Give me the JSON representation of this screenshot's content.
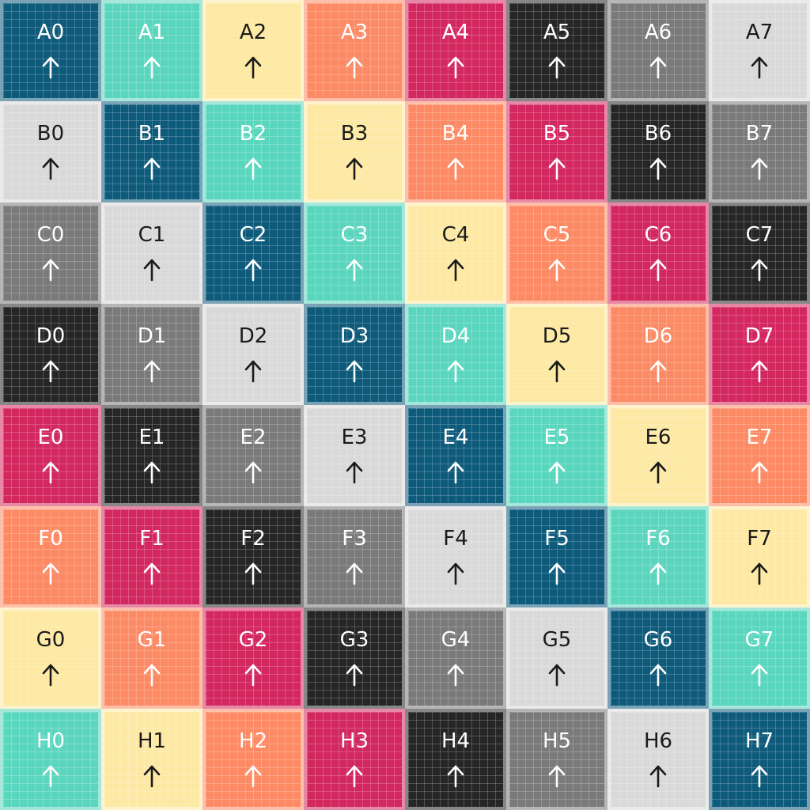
{
  "board": {
    "palette": {
      "navy": "#0e5a7b",
      "teal": "#5bd6be",
      "cream": "#fde9a3",
      "coral": "#fc8a64",
      "crimson": "#d32760",
      "black": "#262626",
      "gray": "#7a7a7a",
      "light": "#d9d9d9"
    },
    "dark_text": "#1a1a1a",
    "light_text": "#ffffff",
    "arrow_direction": "up",
    "rows": [
      {
        "row": "A",
        "tiles": [
          {
            "label": "A0",
            "color": "navy"
          },
          {
            "label": "A1",
            "color": "teal"
          },
          {
            "label": "A2",
            "color": "cream"
          },
          {
            "label": "A3",
            "color": "coral"
          },
          {
            "label": "A4",
            "color": "crimson"
          },
          {
            "label": "A5",
            "color": "black"
          },
          {
            "label": "A6",
            "color": "gray"
          },
          {
            "label": "A7",
            "color": "light"
          }
        ]
      },
      {
        "row": "B",
        "tiles": [
          {
            "label": "B0",
            "color": "light"
          },
          {
            "label": "B1",
            "color": "navy"
          },
          {
            "label": "B2",
            "color": "teal"
          },
          {
            "label": "B3",
            "color": "cream"
          },
          {
            "label": "B4",
            "color": "coral"
          },
          {
            "label": "B5",
            "color": "crimson"
          },
          {
            "label": "B6",
            "color": "black"
          },
          {
            "label": "B7",
            "color": "gray"
          }
        ]
      },
      {
        "row": "C",
        "tiles": [
          {
            "label": "C0",
            "color": "gray"
          },
          {
            "label": "C1",
            "color": "light"
          },
          {
            "label": "C2",
            "color": "navy"
          },
          {
            "label": "C3",
            "color": "teal"
          },
          {
            "label": "C4",
            "color": "cream"
          },
          {
            "label": "C5",
            "color": "coral"
          },
          {
            "label": "C6",
            "color": "crimson"
          },
          {
            "label": "C7",
            "color": "black"
          }
        ]
      },
      {
        "row": "D",
        "tiles": [
          {
            "label": "D0",
            "color": "black"
          },
          {
            "label": "D1",
            "color": "gray"
          },
          {
            "label": "D2",
            "color": "light"
          },
          {
            "label": "D3",
            "color": "navy"
          },
          {
            "label": "D4",
            "color": "teal"
          },
          {
            "label": "D5",
            "color": "cream"
          },
          {
            "label": "D6",
            "color": "coral"
          },
          {
            "label": "D7",
            "color": "crimson"
          }
        ]
      },
      {
        "row": "E",
        "tiles": [
          {
            "label": "E0",
            "color": "crimson"
          },
          {
            "label": "E1",
            "color": "black"
          },
          {
            "label": "E2",
            "color": "gray"
          },
          {
            "label": "E3",
            "color": "light"
          },
          {
            "label": "E4",
            "color": "navy"
          },
          {
            "label": "E5",
            "color": "teal"
          },
          {
            "label": "E6",
            "color": "cream"
          },
          {
            "label": "E7",
            "color": "coral"
          }
        ]
      },
      {
        "row": "F",
        "tiles": [
          {
            "label": "F0",
            "color": "coral"
          },
          {
            "label": "F1",
            "color": "crimson"
          },
          {
            "label": "F2",
            "color": "black"
          },
          {
            "label": "F3",
            "color": "gray"
          },
          {
            "label": "F4",
            "color": "light"
          },
          {
            "label": "F5",
            "color": "navy"
          },
          {
            "label": "F6",
            "color": "teal"
          },
          {
            "label": "F7",
            "color": "cream"
          }
        ]
      },
      {
        "row": "G",
        "tiles": [
          {
            "label": "G0",
            "color": "cream"
          },
          {
            "label": "G1",
            "color": "coral"
          },
          {
            "label": "G2",
            "color": "crimson"
          },
          {
            "label": "G3",
            "color": "black"
          },
          {
            "label": "G4",
            "color": "gray"
          },
          {
            "label": "G5",
            "color": "light"
          },
          {
            "label": "G6",
            "color": "navy"
          },
          {
            "label": "G7",
            "color": "teal"
          }
        ]
      },
      {
        "row": "H",
        "tiles": [
          {
            "label": "H0",
            "color": "teal"
          },
          {
            "label": "H1",
            "color": "cream"
          },
          {
            "label": "H2",
            "color": "coral"
          },
          {
            "label": "H3",
            "color": "crimson"
          },
          {
            "label": "H4",
            "color": "black"
          },
          {
            "label": "H5",
            "color": "gray"
          },
          {
            "label": "H6",
            "color": "light"
          },
          {
            "label": "H7",
            "color": "navy"
          }
        ]
      }
    ]
  }
}
